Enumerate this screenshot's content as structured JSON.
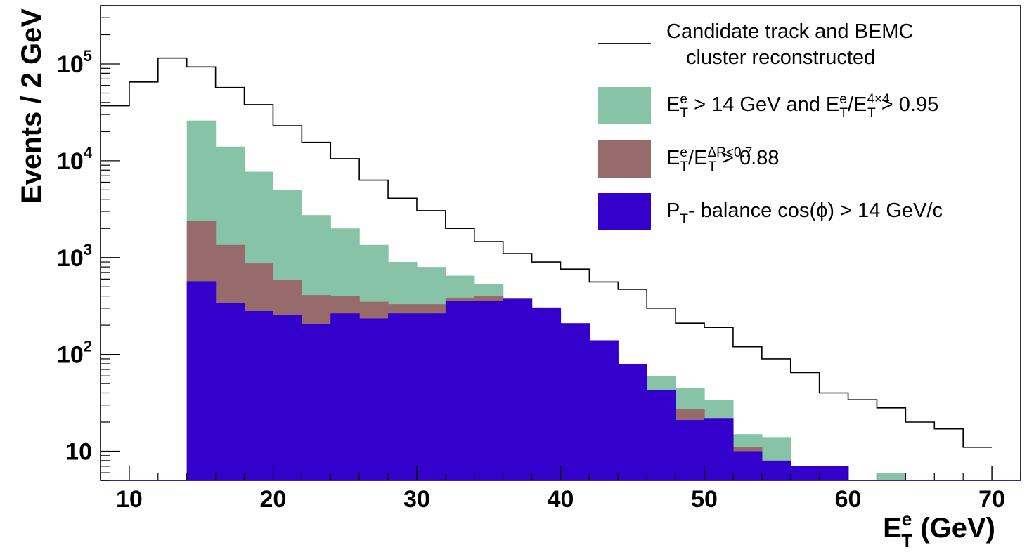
{
  "chart_data": {
    "type": "bar",
    "histogram": true,
    "log_y": true,
    "bin_width": 2,
    "xlim": [
      8,
      72
    ],
    "ylim": [
      5,
      400000
    ],
    "x_ticks": [
      10,
      20,
      30,
      40,
      50,
      60,
      70
    ],
    "y_major_ticks": [
      10,
      100,
      1000,
      10000,
      100000
    ],
    "y_tick_labels": {
      "10": {
        "base": "10",
        "exp": ""
      },
      "100": {
        "base": "10",
        "exp": "2"
      },
      "1000": {
        "base": "10",
        "exp": "3"
      },
      "10000": {
        "base": "10",
        "exp": "4"
      },
      "100000": {
        "base": "10",
        "exp": "5"
      }
    },
    "xlabel": {
      "main": "E",
      "sup": "e",
      "sub": "T",
      "unit": " (GeV)"
    },
    "ylabel": "Events / 2 GeV",
    "grid": false,
    "legend_position": "top-right",
    "series": [
      {
        "key": "track",
        "style": "step",
        "color": "#000000",
        "x_start": 8,
        "values": [
          37000,
          65000,
          115000,
          93000,
          57000,
          38000,
          23000,
          15500,
          10500,
          6300,
          4100,
          3050,
          2000,
          1460,
          1100,
          900,
          760,
          560,
          470,
          300,
          210,
          190,
          120,
          90,
          65,
          40,
          34,
          28,
          20,
          17,
          11
        ]
      },
      {
        "key": "iso4x4",
        "style": "fill",
        "color": "#87c3a6",
        "x_start": 14,
        "values": [
          26000,
          14000,
          7700,
          5000,
          2750,
          2000,
          1350,
          900,
          800,
          650,
          530,
          380,
          270,
          170,
          80,
          68,
          60,
          45,
          34,
          15,
          14,
          7,
          7,
          0,
          6,
          0,
          0,
          0
        ]
      },
      {
        "key": "isoDR",
        "style": "fill",
        "color": "#976b6c",
        "x_start": 14,
        "values": [
          2400,
          1350,
          870,
          590,
          410,
          400,
          350,
          330,
          330,
          380,
          400,
          330,
          215,
          145,
          105,
          48,
          22,
          27,
          16,
          11,
          8,
          7,
          7,
          0,
          0,
          0,
          0,
          0
        ]
      },
      {
        "key": "balance",
        "style": "fill",
        "color": "#3400cc",
        "x_start": 14,
        "values": [
          570,
          340,
          280,
          255,
          205,
          265,
          235,
          265,
          265,
          355,
          360,
          375,
          305,
          210,
          140,
          80,
          43,
          21,
          22,
          10,
          8,
          7,
          7,
          0,
          0,
          0,
          0,
          0
        ]
      }
    ],
    "legend": [
      {
        "key": "track",
        "swatch": "line",
        "color": "#000000",
        "line1": "Candidate track and BEMC",
        "line2": "cluster reconstructed"
      },
      {
        "key": "iso4x4",
        "swatch": "box",
        "color": "#87c3a6",
        "parts": [
          {
            "t": "E"
          },
          {
            "sup": "e"
          },
          {
            "sub": "T"
          },
          {
            "t": " > 14 GeV and E"
          },
          {
            "sup": "e"
          },
          {
            "sub": "T"
          },
          {
            "t": "/E"
          },
          {
            "sup": "4×4"
          },
          {
            "sub": "T"
          },
          {
            "t": " > 0.95"
          }
        ]
      },
      {
        "key": "isoDR",
        "swatch": "box",
        "color": "#976b6c",
        "parts": [
          {
            "t": "E"
          },
          {
            "sup": "e"
          },
          {
            "sub": "T"
          },
          {
            "t": "/E"
          },
          {
            "sup": "ΔR<0.7"
          },
          {
            "sub": "T"
          },
          {
            "t": " > 0.88"
          }
        ]
      },
      {
        "key": "balance",
        "swatch": "box",
        "color": "#3400cc",
        "parts": [
          {
            "t": "P"
          },
          {
            "sub": "T"
          },
          {
            "t": "- balance cos(ϕ) > 14 GeV/c"
          }
        ]
      }
    ]
  }
}
